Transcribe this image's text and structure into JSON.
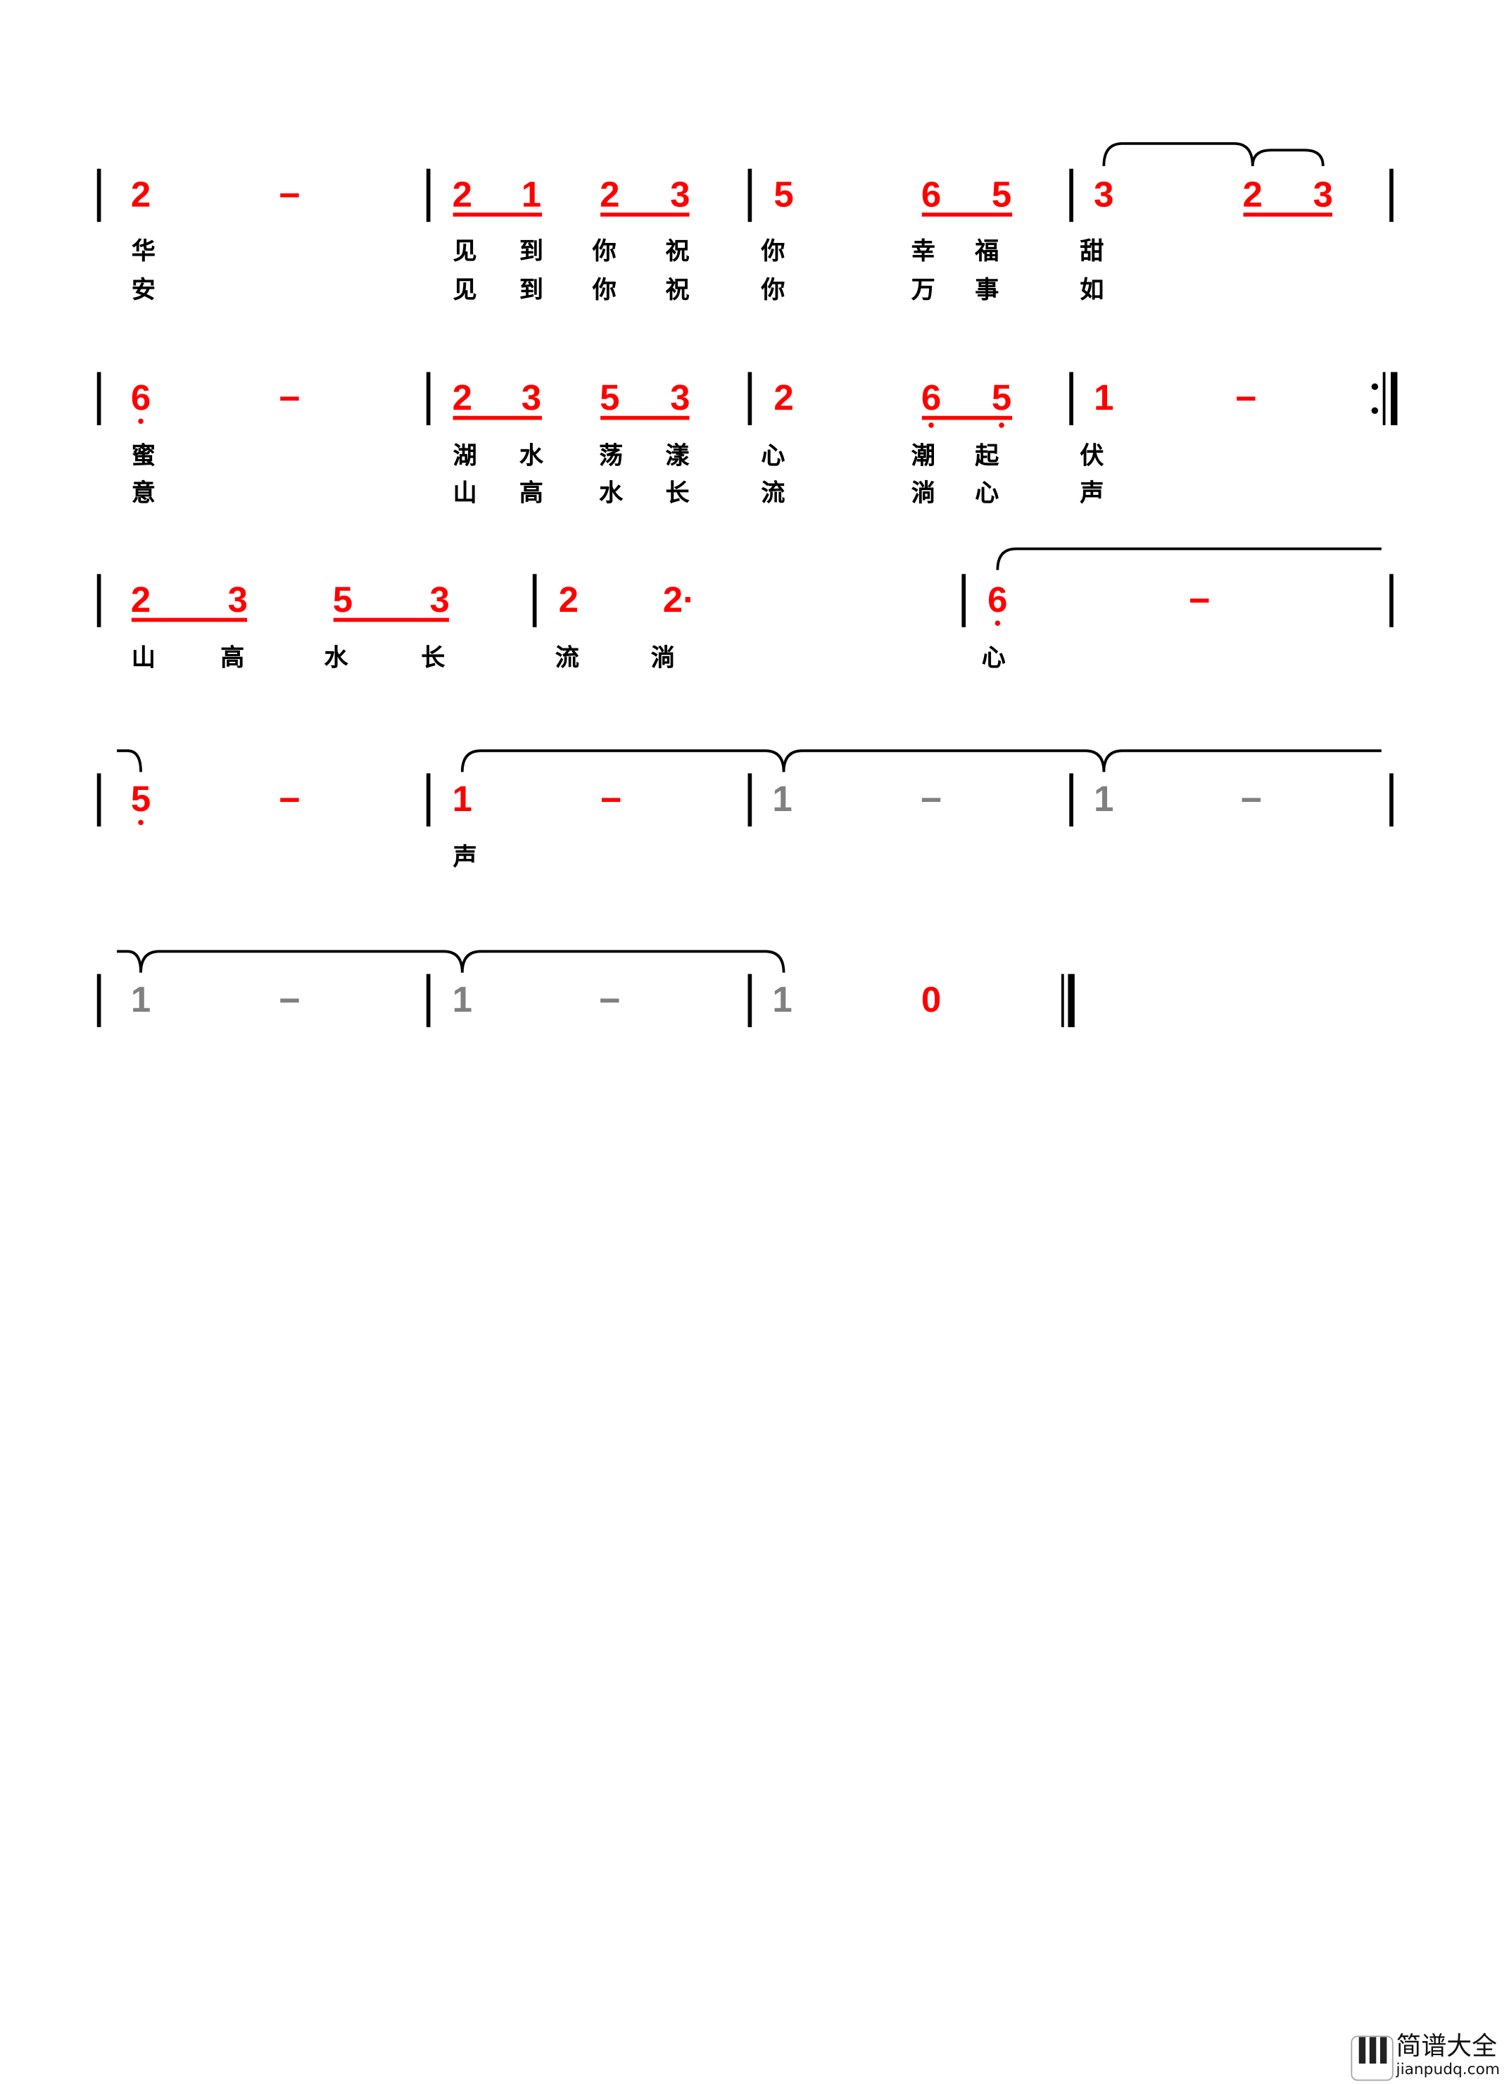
{
  "colors": {
    "note": "#ff0000",
    "muted": "#808080",
    "text": "#000000"
  },
  "rows": [
    {
      "notes": [
        {
          "t": "2"
        },
        {
          "t": "–"
        },
        {
          "t": "2"
        },
        {
          "t": "1"
        },
        {
          "t": "2"
        },
        {
          "t": "3"
        },
        {
          "t": "5"
        },
        {
          "t": "6"
        },
        {
          "t": "5"
        },
        {
          "t": "3"
        },
        {
          "t": "2"
        },
        {
          "t": "3"
        }
      ],
      "lyrics": [
        [
          "华",
          "见",
          "到",
          "你",
          "祝",
          "你",
          "幸",
          "福",
          "甜"
        ],
        [
          "安",
          "见",
          "到",
          "你",
          "祝",
          "你",
          "万",
          "事",
          "如"
        ]
      ]
    },
    {
      "notes": [
        {
          "t": "6",
          "low": true
        },
        {
          "t": "–"
        },
        {
          "t": "2"
        },
        {
          "t": "3"
        },
        {
          "t": "5"
        },
        {
          "t": "3"
        },
        {
          "t": "2"
        },
        {
          "t": "6",
          "low": true
        },
        {
          "t": "5",
          "low": true
        },
        {
          "t": "1"
        },
        {
          "t": "–"
        }
      ],
      "lyrics": [
        [
          "蜜",
          "湖",
          "水",
          "荡",
          "漾",
          "心",
          "潮",
          "起",
          "伏"
        ],
        [
          "意",
          "山",
          "高",
          "水",
          "长",
          "流",
          "淌",
          "心",
          "声"
        ]
      ]
    },
    {
      "notes": [
        {
          "t": "2"
        },
        {
          "t": "3"
        },
        {
          "t": "5"
        },
        {
          "t": "3"
        },
        {
          "t": "2"
        },
        {
          "t": "2·"
        },
        {
          "t": "6",
          "low": true
        },
        {
          "t": "–"
        }
      ],
      "lyrics": [
        [
          "山",
          "高",
          "水",
          "长",
          "流",
          "淌",
          "心"
        ]
      ]
    },
    {
      "notes": [
        {
          "t": "5",
          "low": true
        },
        {
          "t": "–"
        },
        {
          "t": "1"
        },
        {
          "t": "–"
        },
        {
          "t": "1",
          "muted": true
        },
        {
          "t": "–",
          "muted": true
        },
        {
          "t": "1",
          "muted": true
        },
        {
          "t": "–",
          "muted": true
        }
      ],
      "lyrics": [
        [
          "声"
        ]
      ]
    },
    {
      "notes": [
        {
          "t": "1",
          "muted": true
        },
        {
          "t": "–",
          "muted": true
        },
        {
          "t": "1",
          "muted": true
        },
        {
          "t": "–",
          "muted": true
        },
        {
          "t": "1",
          "muted": true
        },
        {
          "t": "0"
        }
      ],
      "lyrics": [
        []
      ]
    }
  ],
  "logo": {
    "title": "简谱大全",
    "site": "jianpudq.com"
  }
}
